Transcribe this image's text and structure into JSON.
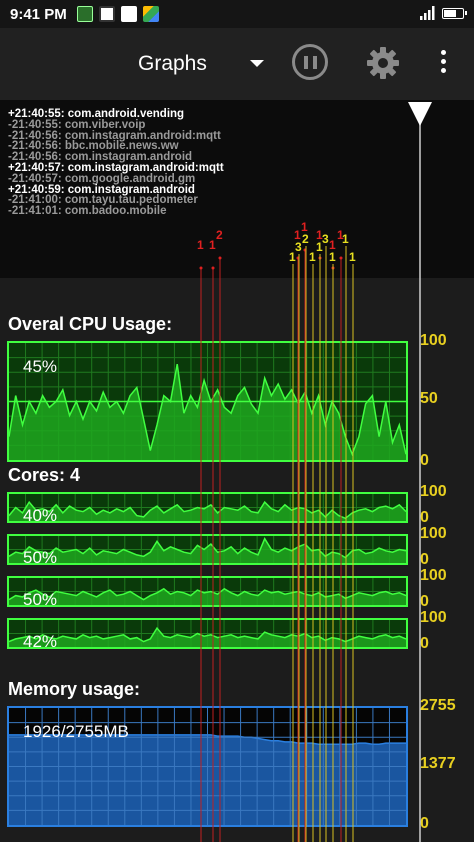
{
  "status_bar": {
    "time": "9:41 PM",
    "icons": [
      "notification-icon-1",
      "notification-icon-2",
      "notification-icon-3",
      "drive-icon"
    ],
    "right_icons": [
      "signal-icon",
      "battery-icon"
    ]
  },
  "toolbar": {
    "title": "Graphs",
    "dropdown_icon": "chevron-down-icon",
    "pause_icon": "pause-icon",
    "settings_icon": "gear-icon",
    "overflow_icon": "more-vert-icon"
  },
  "log": [
    {
      "sign": "plus",
      "text": "+21:40:55:  com.android.vending"
    },
    {
      "sign": "minus",
      "text": "-21:40:55:  com.viber.voip"
    },
    {
      "sign": "minus",
      "text": "-21:40:56:  com.instagram.android:mqtt"
    },
    {
      "sign": "minus",
      "text": "-21:40:56:  bbc.mobile.news.ww"
    },
    {
      "sign": "minus",
      "text": "-21:40:56:  com.instagram.android"
    },
    {
      "sign": "plus",
      "text": "+21:40:57:  com.instagram.android:mqtt"
    },
    {
      "sign": "minus",
      "text": "-21:40:57:  com.google.android.gm"
    },
    {
      "sign": "plus",
      "text": "+21:40:59:  com.instagram.android"
    },
    {
      "sign": "minus",
      "text": "-21:41:00:  com.tayu.tau.pedometer"
    },
    {
      "sign": "minus",
      "text": "-21:41:01:  com.badoo.mobile"
    }
  ],
  "cpu": {
    "label": "Overal CPU Usage:",
    "percent": "45%",
    "axis": [
      "100",
      "50",
      "0"
    ],
    "series": [
      20,
      55,
      30,
      50,
      40,
      55,
      45,
      50,
      60,
      38,
      50,
      35,
      50,
      42,
      58,
      45,
      50,
      40,
      55,
      62,
      35,
      8,
      30,
      55,
      50,
      82,
      40,
      55,
      45,
      68,
      50,
      60,
      45,
      40,
      55,
      62,
      48,
      40,
      70,
      55,
      65,
      52,
      60,
      48,
      58,
      40,
      55,
      30,
      50,
      40,
      20,
      5,
      20,
      48,
      55,
      20,
      50,
      15,
      30,
      5
    ],
    "colors": {
      "line": "#40ff40",
      "fill": "#1ea81e",
      "bg": "#0a3a0a"
    }
  },
  "cores": {
    "label": "Cores: 4",
    "axis": [
      "100",
      "0"
    ],
    "items": [
      {
        "percent": "40%",
        "series": [
          20,
          50,
          30,
          70,
          40,
          45,
          35,
          60,
          30,
          55,
          40,
          35,
          50,
          25,
          40,
          30,
          45,
          35,
          50,
          20,
          15,
          40,
          55,
          30,
          45,
          60,
          35,
          40,
          50,
          45,
          60,
          30,
          50,
          45,
          40,
          55,
          35,
          30,
          70,
          45,
          35,
          60,
          40,
          50,
          45,
          30,
          40,
          15,
          40,
          20,
          10,
          30,
          40,
          45,
          35,
          50,
          55,
          45,
          60,
          35
        ]
      },
      {
        "percent": "50%",
        "series": [
          25,
          40,
          35,
          60,
          45,
          40,
          35,
          55,
          40,
          45,
          50,
          35,
          55,
          30,
          45,
          40,
          35,
          50,
          40,
          30,
          25,
          40,
          80,
          45,
          60,
          50,
          40,
          35,
          65,
          50,
          70,
          40,
          45,
          60,
          35,
          55,
          40,
          30,
          90,
          50,
          40,
          55,
          45,
          60,
          70,
          45,
          50,
          25,
          40,
          35,
          20,
          45,
          50,
          35,
          40,
          55,
          45,
          40,
          50,
          45
        ]
      },
      {
        "percent": "50%",
        "series": [
          20,
          35,
          30,
          45,
          55,
          40,
          30,
          50,
          45,
          40,
          35,
          50,
          40,
          30,
          45,
          55,
          35,
          40,
          50,
          35,
          20,
          35,
          45,
          60,
          40,
          50,
          45,
          35,
          55,
          45,
          50,
          40,
          60,
          45,
          35,
          50,
          40,
          35,
          55,
          45,
          50,
          40,
          45,
          50,
          40,
          35,
          45,
          30,
          35,
          40,
          25,
          35,
          45,
          40,
          35,
          45,
          50,
          40,
          45,
          35
        ]
      },
      {
        "percent": "42%",
        "series": [
          20,
          30,
          35,
          40,
          30,
          45,
          35,
          30,
          40,
          35,
          30,
          45,
          35,
          40,
          30,
          35,
          40,
          45,
          30,
          35,
          20,
          30,
          70,
          40,
          35,
          45,
          40,
          35,
          50,
          40,
          45,
          35,
          40,
          45,
          35,
          40,
          35,
          30,
          55,
          45,
          40,
          35,
          45,
          40,
          50,
          35,
          40,
          25,
          35,
          30,
          20,
          30,
          40,
          35,
          30,
          40,
          45,
          35,
          40,
          30
        ]
      }
    ],
    "colors": {
      "line": "#40ff40",
      "fill": "#1ea81e",
      "bg": "#0a3a0a"
    }
  },
  "memory": {
    "label": "Memory usage:",
    "percent": "1926/2755MB",
    "axis": [
      "2755",
      "1377",
      "0"
    ],
    "series": [
      77,
      77,
      77,
      77,
      77,
      77,
      77,
      77,
      77,
      77,
      77,
      77,
      77,
      77,
      77,
      77,
      77,
      77,
      77,
      77,
      77,
      77,
      77,
      77,
      77,
      77,
      77,
      77,
      77,
      77,
      77,
      76,
      76,
      76,
      76,
      75,
      75,
      74,
      73,
      72,
      72,
      71,
      71,
      70,
      70,
      70,
      69,
      69,
      69,
      69,
      69,
      69,
      70,
      70,
      69,
      69,
      70,
      70,
      70,
      70
    ],
    "colors": {
      "line": "#2a7fe0",
      "fill": "#1d5fb0",
      "bg": "#0a2244"
    }
  },
  "event_markers": {
    "red": [
      {
        "x": 201,
        "label": "1"
      },
      {
        "x": 213,
        "label": "1"
      },
      {
        "x": 220,
        "label": "2"
      },
      {
        "x": 298,
        "label": "1"
      },
      {
        "x": 305,
        "label": "1"
      },
      {
        "x": 320,
        "label": "1"
      },
      {
        "x": 333,
        "label": "1"
      },
      {
        "x": 341,
        "label": "1"
      }
    ],
    "yellow": [
      {
        "x": 293,
        "label": "1"
      },
      {
        "x": 299,
        "label": "3"
      },
      {
        "x": 306,
        "label": "2"
      },
      {
        "x": 313,
        "label": "1"
      },
      {
        "x": 320,
        "label": "1"
      },
      {
        "x": 326,
        "label": "3"
      },
      {
        "x": 333,
        "label": "1"
      },
      {
        "x": 346,
        "label": "1"
      },
      {
        "x": 353,
        "label": "1"
      }
    ],
    "timeline_marker_icon": "timeline-cursor-icon"
  }
}
